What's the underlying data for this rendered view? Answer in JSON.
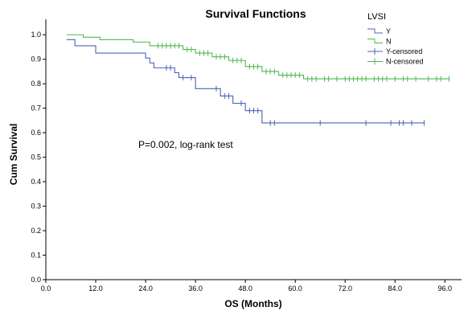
{
  "chart_data": {
    "type": "line",
    "title": "Survival Functions",
    "xlabel": "OS (Months)",
    "ylabel": "Cum Survival",
    "xlim": [
      0,
      100
    ],
    "ylim": [
      0,
      1.05
    ],
    "x_ticks": [
      "0.0",
      "12.0",
      "24.0",
      "36.0",
      "48.0",
      "60.0",
      "72.0",
      "84.0",
      "96.0"
    ],
    "y_ticks": [
      "0.0",
      "0.1",
      "0.2",
      "0.3",
      "0.4",
      "0.5",
      "0.6",
      "0.7",
      "0.8",
      "0.9",
      "1.0"
    ],
    "legend": {
      "title": "LVSI",
      "position": "top-right",
      "entries": [
        "Y",
        "N",
        "Y-censored",
        "N-censored"
      ]
    },
    "annotation": "P=0.002, log-rank test",
    "grid": false,
    "series": [
      {
        "name": "Y",
        "color": "#4a64b5",
        "steps": [
          [
            5,
            0.98
          ],
          [
            7,
            0.955
          ],
          [
            12,
            0.925
          ],
          [
            24,
            0.905
          ],
          [
            25,
            0.885
          ],
          [
            26,
            0.865
          ],
          [
            31,
            0.845
          ],
          [
            32,
            0.825
          ],
          [
            36,
            0.78
          ],
          [
            42,
            0.75
          ],
          [
            45,
            0.72
          ],
          [
            48,
            0.69
          ],
          [
            52,
            0.64
          ],
          [
            91,
            0.64
          ]
        ],
        "censored": [
          [
            29,
            0.865
          ],
          [
            30,
            0.865
          ],
          [
            33,
            0.825
          ],
          [
            35,
            0.825
          ],
          [
            41,
            0.78
          ],
          [
            43,
            0.75
          ],
          [
            44,
            0.75
          ],
          [
            47,
            0.72
          ],
          [
            49,
            0.69
          ],
          [
            50,
            0.69
          ],
          [
            51,
            0.69
          ],
          [
            54,
            0.64
          ],
          [
            55,
            0.64
          ],
          [
            66,
            0.64
          ],
          [
            77,
            0.64
          ],
          [
            83,
            0.64
          ],
          [
            85,
            0.64
          ],
          [
            86,
            0.64
          ],
          [
            88,
            0.64
          ],
          [
            91,
            0.64
          ]
        ]
      },
      {
        "name": "N",
        "color": "#4fb84f",
        "steps": [
          [
            5,
            1.0
          ],
          [
            9,
            0.99
          ],
          [
            13,
            0.98
          ],
          [
            21,
            0.97
          ],
          [
            25,
            0.955
          ],
          [
            33,
            0.94
          ],
          [
            36,
            0.925
          ],
          [
            40,
            0.91
          ],
          [
            44,
            0.895
          ],
          [
            48,
            0.87
          ],
          [
            52,
            0.85
          ],
          [
            56,
            0.835
          ],
          [
            62,
            0.82
          ],
          [
            97,
            0.82
          ]
        ],
        "censored": [
          [
            27,
            0.955
          ],
          [
            28,
            0.955
          ],
          [
            29,
            0.955
          ],
          [
            30,
            0.955
          ],
          [
            31,
            0.955
          ],
          [
            32,
            0.955
          ],
          [
            34,
            0.94
          ],
          [
            35,
            0.94
          ],
          [
            37,
            0.925
          ],
          [
            38,
            0.925
          ],
          [
            39,
            0.925
          ],
          [
            41,
            0.91
          ],
          [
            42,
            0.91
          ],
          [
            43,
            0.91
          ],
          [
            45,
            0.895
          ],
          [
            46,
            0.895
          ],
          [
            47,
            0.895
          ],
          [
            49,
            0.87
          ],
          [
            50,
            0.87
          ],
          [
            51,
            0.87
          ],
          [
            53,
            0.85
          ],
          [
            54,
            0.85
          ],
          [
            55,
            0.85
          ],
          [
            57,
            0.835
          ],
          [
            58,
            0.835
          ],
          [
            59,
            0.835
          ],
          [
            60,
            0.835
          ],
          [
            61,
            0.835
          ],
          [
            63,
            0.82
          ],
          [
            64,
            0.82
          ],
          [
            65,
            0.82
          ],
          [
            67,
            0.82
          ],
          [
            68,
            0.82
          ],
          [
            70,
            0.82
          ],
          [
            72,
            0.82
          ],
          [
            73,
            0.82
          ],
          [
            74,
            0.82
          ],
          [
            75,
            0.82
          ],
          [
            76,
            0.82
          ],
          [
            77,
            0.82
          ],
          [
            79,
            0.82
          ],
          [
            80,
            0.82
          ],
          [
            81,
            0.82
          ],
          [
            82,
            0.82
          ],
          [
            84,
            0.82
          ],
          [
            86,
            0.82
          ],
          [
            87,
            0.82
          ],
          [
            89,
            0.82
          ],
          [
            92,
            0.82
          ],
          [
            94,
            0.82
          ],
          [
            95,
            0.82
          ],
          [
            97,
            0.82
          ]
        ]
      }
    ]
  }
}
